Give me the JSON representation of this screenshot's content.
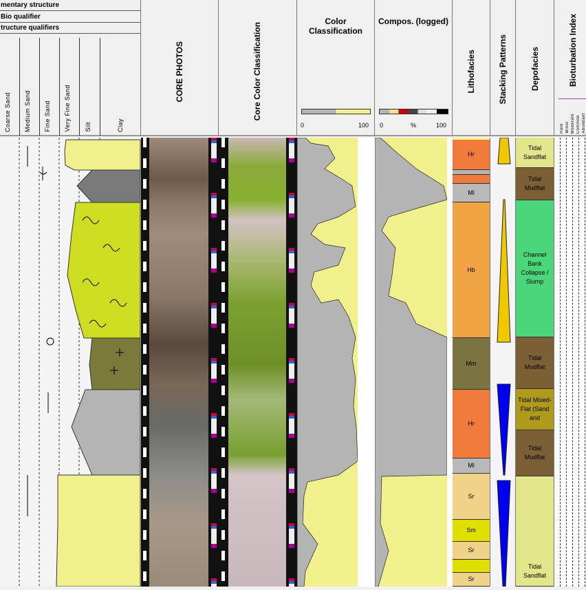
{
  "left_panel": {
    "rows": [
      "mentary structure",
      "Bio qualifier",
      "tructure qualifiers"
    ],
    "grain_sizes": [
      "Coarse Sand",
      "Medium Sand",
      "Fine Sand",
      "Very Fine Sand",
      "Silt",
      "Clay"
    ]
  },
  "columns": {
    "core_photos": "CORE PHOTOS",
    "core_color": "Core Color Classification",
    "color_classification": {
      "title": "Color Classification",
      "min": "0",
      "max": "100"
    },
    "compos": {
      "title": "Compos. (logged)",
      "min": "0",
      "unit": "%",
      "max": "100"
    },
    "lithofacies": "Lithofacies",
    "stacking": "Stacking Patterns",
    "depofacies": "Depofacies",
    "bioturbation": {
      "title": "Bioturbation Index",
      "levels": [
        "Rare",
        "Minor",
        "Moderate",
        "Common",
        "Abundant"
      ]
    }
  },
  "lithofacies": [
    {
      "code": "Hr",
      "color": "#f07a3c"
    },
    {
      "code": "",
      "color": "#b4b4b4"
    },
    {
      "code": "",
      "color": "#f07a3c"
    },
    {
      "code": "Ml",
      "color": "#b9b9b9"
    },
    {
      "code": "Hb",
      "color": "#f0a444"
    },
    {
      "code": "Mm",
      "color": "#7a7540"
    },
    {
      "code": "Hr",
      "color": "#f07a3c"
    },
    {
      "code": "Ml",
      "color": "#b9b9b9"
    },
    {
      "code": "Sr",
      "color": "#f0d288"
    },
    {
      "code": "Sm",
      "color": "#e0e000"
    },
    {
      "code": "Sr",
      "color": "#f0d288"
    },
    {
      "code": "",
      "color": "#e0e000"
    },
    {
      "code": "Sr",
      "color": "#f0d288"
    }
  ],
  "depofacies": [
    {
      "label": "Tidal Sandflat",
      "color": "#e3e58a"
    },
    {
      "label": "Tidal Mudflat",
      "color": "#7b6036"
    },
    {
      "label": "Channel Bank Collapse / Slump",
      "color": "#4cd67c"
    },
    {
      "label": "Tidal Mudflat",
      "color": "#7b6036"
    },
    {
      "label": "Tidal Mixed-Flat (Sand and",
      "color": "#b09a1c"
    },
    {
      "label": "Tidal Mudflat",
      "color": "#7b6036"
    },
    {
      "label": "Tidal Sandflat",
      "color": "#e3e58a"
    }
  ],
  "stacking_colors": {
    "fining": "#f0c800",
    "coarsening": "#0000ee"
  }
}
